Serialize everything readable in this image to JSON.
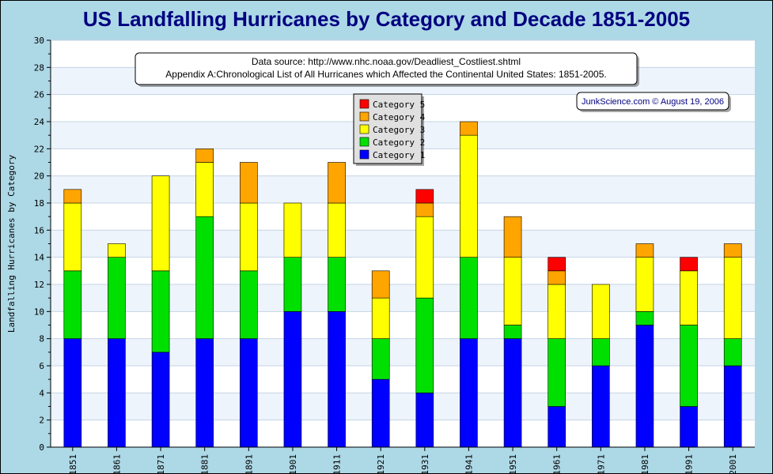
{
  "chart_data": {
    "type": "bar",
    "stacked": true,
    "title": "US Landfalling Hurricanes by Category and Decade 1851-2005",
    "ylabel": "Landfalling Hurricanes by Category",
    "xlabel": "",
    "ylim": [
      0,
      30
    ],
    "y_ticks": [
      0,
      2,
      4,
      6,
      8,
      10,
      12,
      14,
      16,
      18,
      20,
      22,
      24,
      26,
      28,
      30
    ],
    "grid": true,
    "legend_position": "top-center",
    "categories": [
      "1851",
      "1861",
      "1871",
      "1881",
      "1891",
      "1901",
      "1911",
      "1921",
      "1931",
      "1941",
      "1951",
      "1961",
      "1971",
      "1981",
      "1991",
      "2001"
    ],
    "series": [
      {
        "name": "Category 1",
        "color": "#0000ff",
        "values": [
          8,
          8,
          7,
          8,
          8,
          10,
          10,
          5,
          4,
          8,
          8,
          3,
          6,
          9,
          3,
          6
        ]
      },
      {
        "name": "Category 2",
        "color": "#00e000",
        "values": [
          5,
          6,
          6,
          9,
          5,
          4,
          4,
          3,
          7,
          6,
          1,
          5,
          2,
          1,
          6,
          2
        ]
      },
      {
        "name": "Category 3",
        "color": "#ffff00",
        "values": [
          5,
          1,
          7,
          4,
          5,
          4,
          4,
          3,
          6,
          9,
          5,
          4,
          4,
          4,
          4,
          6
        ]
      },
      {
        "name": "Category 4",
        "color": "#ffa500",
        "values": [
          1,
          0,
          0,
          1,
          3,
          0,
          3,
          2,
          1,
          1,
          3,
          1,
          0,
          1,
          0,
          1
        ]
      },
      {
        "name": "Category 5",
        "color": "#ff0000",
        "values": [
          0,
          0,
          0,
          0,
          0,
          0,
          0,
          0,
          1,
          0,
          0,
          1,
          0,
          0,
          1,
          0
        ]
      }
    ],
    "annotations": {
      "source_line1": "Data source: http://www.nhc.noaa.gov/Deadliest_Costliest.shtml",
      "source_line2": "Appendix A:Chronological List of All Hurricanes which Affected the Continental United States: 1851-2005.",
      "credit": "JunkScience.com © August 19, 2006"
    }
  }
}
